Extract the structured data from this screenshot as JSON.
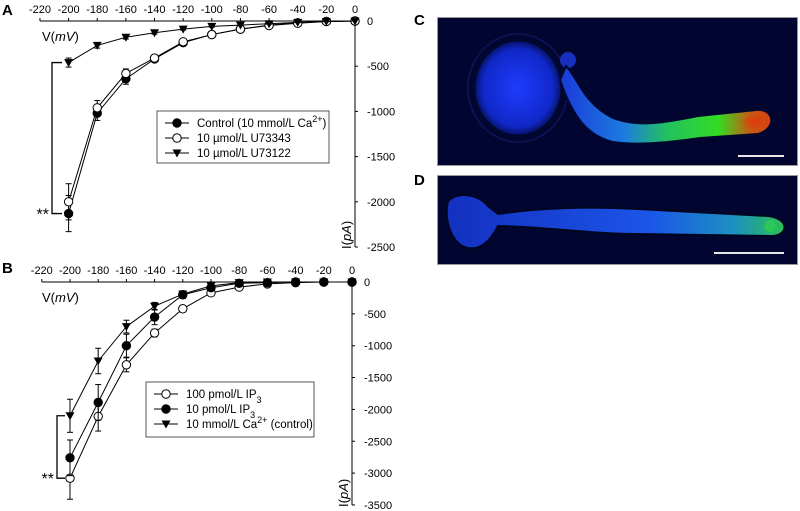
{
  "panels": {
    "A": {
      "label": "A"
    },
    "B": {
      "label": "B"
    },
    "C": {
      "label": "C"
    },
    "D": {
      "label": "D"
    }
  },
  "chart_data": [
    {
      "id": "A",
      "type": "line",
      "title": "",
      "xlabel": "V(mV)",
      "ylabel": "I(pA)",
      "x": [
        -200,
        -180,
        -160,
        -140,
        -120,
        -100,
        -80,
        -60,
        -40,
        -20,
        0
      ],
      "xticks": [
        -220,
        -200,
        -180,
        -160,
        -140,
        -120,
        -100,
        -80,
        -60,
        -40,
        -20,
        0
      ],
      "yticks": [
        0,
        -500,
        -1000,
        -1500,
        -2000,
        -2500
      ],
      "xlim": [
        -220,
        0
      ],
      "ylim": [
        -2500,
        0
      ],
      "legend_position": "center",
      "series": [
        {
          "name": "Control (10 mmol/L Ca2+)",
          "marker": "filled-circle",
          "values": [
            -2130,
            -1020,
            -640,
            -420,
            -240,
            -150,
            -90,
            -45,
            -20,
            -5,
            0
          ],
          "err": [
            200,
            80,
            60,
            30,
            20,
            15,
            10,
            8,
            5,
            3,
            0
          ]
        },
        {
          "name": "10 µmol/L U73343",
          "marker": "open-circle",
          "values": [
            -2000,
            -960,
            -580,
            -410,
            -230,
            -150,
            -90,
            -50,
            -25,
            -5,
            0
          ],
          "err": [
            200,
            80,
            50,
            30,
            20,
            15,
            10,
            8,
            5,
            3,
            0
          ]
        },
        {
          "name": "10 µmol/L U73122",
          "marker": "filled-triangle-down",
          "values": [
            -460,
            -270,
            -180,
            -130,
            -90,
            -60,
            -45,
            -30,
            -15,
            -5,
            0
          ],
          "err": [
            50,
            30,
            20,
            15,
            10,
            8,
            5,
            5,
            3,
            2,
            0
          ]
        }
      ],
      "annotations": [
        "**"
      ]
    },
    {
      "id": "B",
      "type": "line",
      "title": "",
      "xlabel": "V(mV)",
      "ylabel": "I(pA)",
      "x": [
        -200,
        -180,
        -160,
        -140,
        -120,
        -100,
        -80,
        -60,
        -40,
        -20,
        0
      ],
      "xticks": [
        -220,
        -200,
        -180,
        -160,
        -140,
        -120,
        -100,
        -80,
        -60,
        -40,
        -20,
        0
      ],
      "yticks": [
        0,
        -500,
        -1000,
        -1500,
        -2000,
        -2500,
        -3000,
        -3500
      ],
      "xlim": [
        -220,
        0
      ],
      "ylim": [
        -3500,
        0
      ],
      "legend_position": "center",
      "series": [
        {
          "name": "100 pmol/L IP3",
          "marker": "open-circle",
          "values": [
            -3080,
            -2110,
            -1300,
            -800,
            -420,
            -170,
            -80,
            -30,
            -10,
            0,
            0
          ],
          "err": [
            330,
            230,
            110,
            60,
            40,
            20,
            10,
            5,
            3,
            2,
            0
          ]
        },
        {
          "name": "10 pmol/L IP3",
          "marker": "filled-circle",
          "values": [
            -2760,
            -1890,
            -1000,
            -550,
            -200,
            -90,
            -20,
            -10,
            0,
            0,
            0
          ],
          "err": [
            280,
            280,
            180,
            120,
            60,
            20,
            10,
            5,
            3,
            2,
            0
          ]
        },
        {
          "name": "10 mmol/L Ca2+ (control)",
          "marker": "filled-triangle-down",
          "values": [
            -2100,
            -1240,
            -700,
            -380,
            -190,
            -60,
            -10,
            0,
            0,
            0,
            0
          ],
          "err": [
            260,
            200,
            100,
            60,
            50,
            20,
            10,
            5,
            3,
            2,
            0
          ]
        }
      ],
      "annotations": [
        "**"
      ]
    }
  ],
  "legendA": [
    {
      "text": "Control (10 mmol/L Ca",
      "sup": "2+",
      "tail": ")"
    },
    {
      "text": "10 µmol/L U73343",
      "sup": "",
      "tail": ""
    },
    {
      "text": "10 µmol/L U73122",
      "sup": "",
      "tail": ""
    }
  ],
  "legendB": [
    {
      "text": "100 pmol/L IP",
      "sub": "3",
      "sup": "",
      "tail": ""
    },
    {
      "text": "10 pmol/L IP",
      "sub": "3",
      "sup": "",
      "tail": ""
    },
    {
      "text": "10 mmol/L Ca",
      "sub": "",
      "sup": "2+",
      "tail": " (control)"
    }
  ],
  "axis": {
    "xlabel_main": "V(",
    "xlabel_unit": "mV",
    "xlabel_close": ")",
    "ylabel_main": "I(",
    "ylabel_unit": "pA",
    "ylabel_close": ")"
  },
  "significance": "**"
}
